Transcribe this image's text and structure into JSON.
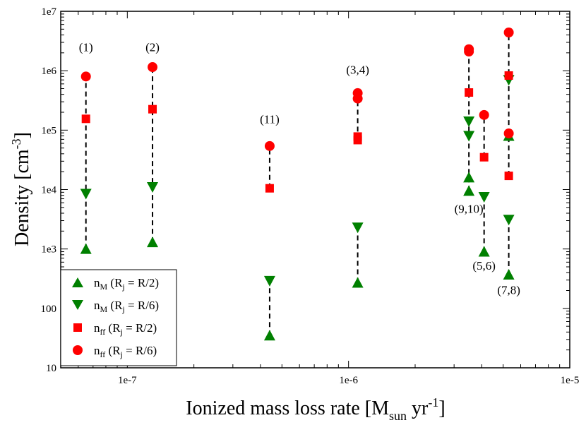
{
  "chart_data": {
    "type": "scatter",
    "title": "",
    "xlabel": {
      "main": "Ionized mass loss rate [M",
      "sub": "sun",
      "mid": " yr",
      "sup": "-1",
      "end": "]"
    },
    "ylabel": {
      "main": "Density [cm",
      "sup": "-3",
      "end": "]"
    },
    "x_scale": "log",
    "y_scale": "log",
    "xlim": [
      5e-08,
      1e-05
    ],
    "ylim": [
      10,
      10000000.0
    ],
    "x_ticks": [
      {
        "value": 1e-07,
        "label": "1e-7"
      },
      {
        "value": 1e-06,
        "label": "1e-6"
      },
      {
        "value": 1e-05,
        "label": "1e-5"
      }
    ],
    "y_ticks": [
      {
        "value": 10,
        "label": "10"
      },
      {
        "value": 100,
        "label": "100"
      },
      {
        "value": 1000,
        "label": "1e3"
      },
      {
        "value": 10000,
        "label": "1e4"
      },
      {
        "value": 100000,
        "label": "1e5"
      },
      {
        "value": 1000000,
        "label": "1e6"
      },
      {
        "value": 10000000,
        "label": "1e7"
      }
    ],
    "series": [
      {
        "name": "nM_half",
        "legend": {
          "base": "n",
          "sub": "M",
          "text": " (R",
          "sub2": "j",
          "text2": " = R/2)"
        },
        "marker": "triangle-up",
        "color": "#008000",
        "x": [
          6.5e-08,
          1.3e-07,
          4.4e-07,
          1.1e-06,
          3.5e-06,
          3.5e-06,
          4.1e-06,
          5.3e-06,
          5.3e-06
        ],
        "y": [
          1000,
          1300,
          35,
          270,
          16000,
          9500,
          900,
          370,
          80000
        ]
      },
      {
        "name": "nM_sixth",
        "legend": {
          "base": "n",
          "sub": "M",
          "text": " (R",
          "sub2": "j",
          "text2": " = R/6)"
        },
        "marker": "triangle-down",
        "color": "#008000",
        "x": [
          6.5e-08,
          1.3e-07,
          4.4e-07,
          1.1e-06,
          3.5e-06,
          3.5e-06,
          4.1e-06,
          5.3e-06,
          5.3e-06
        ],
        "y": [
          8500,
          11000,
          290,
          2300,
          140000,
          80000,
          7500,
          3100,
          700000
        ]
      },
      {
        "name": "nff_half",
        "legend": {
          "base": "n",
          "sub": "ff",
          "text": " (R",
          "sub2": "j",
          "text2": " = R/2)"
        },
        "marker": "square",
        "color": "#ff0000",
        "x": [
          6.5e-08,
          1.3e-07,
          4.4e-07,
          1.1e-06,
          1.1e-06,
          3.5e-06,
          4.1e-06,
          5.3e-06,
          5.3e-06
        ],
        "y": [
          155000,
          225000,
          10500,
          68000,
          78000,
          430000,
          35000,
          17000,
          830000
        ]
      },
      {
        "name": "nff_sixth",
        "legend": {
          "base": "n",
          "sub": "ff",
          "text": " (R",
          "sub2": "j",
          "text2": " = R/6)"
        },
        "marker": "circle",
        "color": "#ff0000",
        "x": [
          6.5e-08,
          1.3e-07,
          4.4e-07,
          1.1e-06,
          1.1e-06,
          3.5e-06,
          3.5e-06,
          4.1e-06,
          5.3e-06,
          5.3e-06
        ],
        "y": [
          800000,
          1150000,
          54000,
          340000,
          420000,
          2100000,
          2300000,
          180000,
          4400000,
          88000
        ]
      }
    ],
    "connectors": [
      {
        "x": 6.5e-08,
        "y_from": 1000,
        "y_to": 800000
      },
      {
        "x": 1.3e-07,
        "y_from": 1300,
        "y_to": 1150000
      },
      {
        "x": 4.4e-07,
        "y_from": 35,
        "y_to": 290
      },
      {
        "x": 4.4e-07,
        "y_from": 10500,
        "y_to": 54000
      },
      {
        "x": 1.1e-06,
        "y_from": 270,
        "y_to": 2300
      },
      {
        "x": 1.1e-06,
        "y_from": 68000,
        "y_to": 420000
      },
      {
        "x": 3.5e-06,
        "y_from": 9500,
        "y_to": 2300000
      },
      {
        "x": 4.1e-06,
        "y_from": 900,
        "y_to": 7500
      },
      {
        "x": 4.1e-06,
        "y_from": 35000,
        "y_to": 180000
      },
      {
        "x": 5.3e-06,
        "y_from": 370,
        "y_to": 3100
      },
      {
        "x": 5.3e-06,
        "y_from": 17000,
        "y_to": 4400000
      }
    ],
    "annotations": [
      {
        "text": "(1)",
        "x": 6.5e-08,
        "y": 2500000
      },
      {
        "text": "(2)",
        "x": 1.3e-07,
        "y": 2500000
      },
      {
        "text": "(11)",
        "x": 4.4e-07,
        "y": 155000
      },
      {
        "text": "(3,4)",
        "x": 1.1e-06,
        "y": 1050000
      },
      {
        "text": "(9,10)",
        "x": 3.5e-06,
        "y": 4800
      },
      {
        "text": "(5,6)",
        "x": 4.1e-06,
        "y": 530
      },
      {
        "text": "(7,8)",
        "x": 5.3e-06,
        "y": 205
      }
    ],
    "legend_position": "bottom-left",
    "grid": false
  }
}
